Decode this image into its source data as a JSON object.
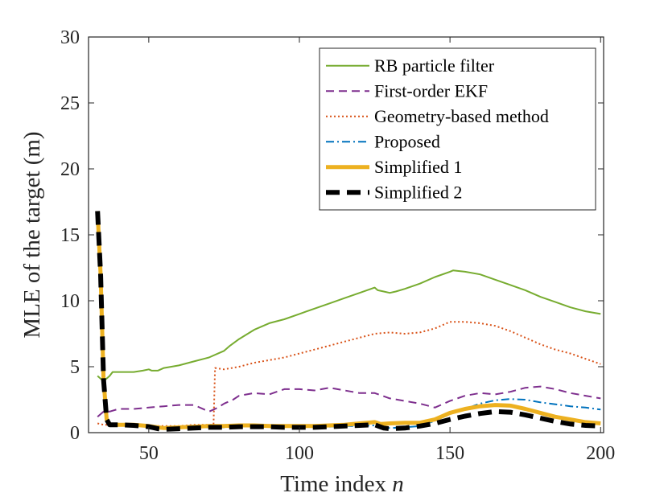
{
  "chart_data": {
    "type": "line",
    "title": "",
    "xlabel": "Time index n",
    "xlabel_text": "Time index ",
    "xlabel_var": "n",
    "ylabel": "MLE of the target (m)",
    "xlim": [
      30,
      201
    ],
    "ylim": [
      0,
      30
    ],
    "xticks": [
      "50",
      "100",
      "150",
      "200"
    ],
    "yticks": [
      "0",
      "5",
      "10",
      "15",
      "20",
      "25",
      "30"
    ],
    "grid": false,
    "legend_position": "top-right",
    "series": [
      {
        "name": "RB particle filter",
        "color": "#77AC30",
        "style": "solid",
        "x": [
          33,
          35,
          37,
          38,
          40,
          45,
          48,
          50,
          51,
          53,
          55,
          60,
          65,
          70,
          73,
          75,
          77,
          80,
          85,
          90,
          95,
          100,
          105,
          110,
          115,
          120,
          125,
          126,
          128,
          130,
          132,
          135,
          140,
          145,
          150,
          151,
          155,
          160,
          165,
          170,
          175,
          180,
          185,
          190,
          195,
          200
        ],
        "values": [
          4.3,
          3.9,
          4.3,
          4.6,
          4.6,
          4.6,
          4.7,
          4.8,
          4.7,
          4.7,
          4.9,
          5.1,
          5.4,
          5.7,
          6.0,
          6.2,
          6.6,
          7.1,
          7.8,
          8.3,
          8.6,
          9.0,
          9.4,
          9.8,
          10.2,
          10.6,
          11.0,
          10.8,
          10.7,
          10.6,
          10.7,
          10.9,
          11.3,
          11.8,
          12.2,
          12.3,
          12.2,
          12.0,
          11.6,
          11.2,
          10.8,
          10.3,
          9.9,
          9.5,
          9.2,
          9.0
        ]
      },
      {
        "name": "First-order EKF",
        "color": "#7E2F8E",
        "style": "dashed",
        "x": [
          33,
          35,
          37,
          40,
          45,
          50,
          55,
          60,
          65,
          70,
          73,
          75,
          78,
          80,
          85,
          90,
          95,
          100,
          105,
          110,
          115,
          120,
          125,
          130,
          135,
          140,
          145,
          150,
          155,
          160,
          165,
          170,
          175,
          180,
          185,
          190,
          195,
          200
        ],
        "values": [
          1.2,
          1.6,
          1.6,
          1.8,
          1.8,
          1.9,
          2.0,
          2.1,
          2.1,
          1.6,
          1.9,
          2.2,
          2.5,
          2.8,
          3.0,
          2.9,
          3.3,
          3.3,
          3.2,
          3.4,
          3.2,
          3.0,
          3.0,
          2.6,
          2.4,
          2.2,
          1.9,
          2.4,
          2.8,
          3.0,
          2.9,
          3.1,
          3.4,
          3.5,
          3.3,
          3.0,
          2.8,
          2.6
        ]
      },
      {
        "name": "Geometry-based method",
        "color": "#D95319",
        "style": "dotted",
        "x": [
          33,
          35,
          37,
          40,
          45,
          50,
          55,
          60,
          65,
          70,
          71.5,
          72,
          75,
          80,
          85,
          90,
          95,
          100,
          105,
          110,
          115,
          120,
          125,
          130,
          135,
          140,
          145,
          150,
          155,
          160,
          165,
          170,
          175,
          180,
          185,
          190,
          195,
          200
        ],
        "values": [
          0.7,
          0.6,
          0.6,
          0.6,
          0.6,
          0.5,
          0.5,
          0.5,
          0.6,
          0.6,
          0.6,
          4.9,
          4.8,
          5.0,
          5.3,
          5.5,
          5.7,
          6.0,
          6.3,
          6.6,
          6.9,
          7.2,
          7.5,
          7.6,
          7.5,
          7.6,
          7.9,
          8.4,
          8.4,
          8.3,
          8.1,
          7.7,
          7.2,
          6.7,
          6.3,
          6.0,
          5.6,
          5.2
        ]
      },
      {
        "name": "Proposed",
        "color": "#0072BD",
        "style": "dashdot",
        "x": [
          33,
          34,
          35,
          36,
          37,
          40,
          45,
          50,
          53,
          55,
          60,
          65,
          70,
          75,
          80,
          85,
          90,
          95,
          100,
          105,
          110,
          115,
          120,
          125,
          128,
          130,
          135,
          140,
          145,
          150,
          155,
          160,
          165,
          170,
          175,
          180,
          185,
          190,
          195,
          200
        ],
        "values": [
          16.8,
          12.0,
          4.0,
          1.0,
          0.6,
          0.6,
          0.55,
          0.5,
          0.35,
          0.3,
          0.35,
          0.4,
          0.4,
          0.4,
          0.5,
          0.5,
          0.45,
          0.45,
          0.45,
          0.45,
          0.45,
          0.5,
          0.5,
          0.55,
          0.4,
          0.35,
          0.4,
          0.5,
          0.9,
          1.4,
          1.8,
          2.2,
          2.45,
          2.55,
          2.5,
          2.3,
          2.15,
          2.0,
          1.9,
          1.75
        ]
      },
      {
        "name": "Simplified 1",
        "color": "#EDB120",
        "style": "solid-thick",
        "x": [
          33,
          34,
          35,
          36,
          37,
          40,
          45,
          50,
          53,
          55,
          60,
          65,
          70,
          75,
          80,
          85,
          90,
          95,
          100,
          105,
          110,
          115,
          120,
          125,
          127,
          130,
          135,
          140,
          145,
          150,
          155,
          160,
          165,
          170,
          175,
          180,
          185,
          190,
          195,
          200
        ],
        "values": [
          16.8,
          12.0,
          4.0,
          1.0,
          0.6,
          0.6,
          0.6,
          0.5,
          0.4,
          0.35,
          0.4,
          0.45,
          0.5,
          0.5,
          0.55,
          0.55,
          0.5,
          0.5,
          0.5,
          0.5,
          0.55,
          0.6,
          0.7,
          0.8,
          0.65,
          0.7,
          0.75,
          0.75,
          1.0,
          1.5,
          1.8,
          2.0,
          2.1,
          2.05,
          1.8,
          1.5,
          1.2,
          1.0,
          0.8,
          0.7
        ]
      },
      {
        "name": "Simplified 2",
        "color": "#000000",
        "style": "dashed-thick",
        "x": [
          33,
          34,
          35,
          36,
          37,
          40,
          45,
          50,
          53,
          55,
          60,
          65,
          70,
          75,
          80,
          85,
          90,
          95,
          100,
          105,
          110,
          115,
          120,
          125,
          128,
          130,
          135,
          140,
          145,
          150,
          155,
          160,
          165,
          170,
          175,
          180,
          185,
          190,
          195,
          200
        ],
        "values": [
          16.8,
          12.0,
          4.0,
          1.0,
          0.6,
          0.6,
          0.55,
          0.45,
          0.3,
          0.25,
          0.3,
          0.35,
          0.4,
          0.4,
          0.45,
          0.45,
          0.45,
          0.4,
          0.4,
          0.4,
          0.45,
          0.5,
          0.55,
          0.6,
          0.35,
          0.3,
          0.35,
          0.5,
          0.7,
          1.0,
          1.25,
          1.45,
          1.6,
          1.55,
          1.35,
          1.1,
          0.85,
          0.65,
          0.55,
          0.5
        ]
      }
    ]
  }
}
